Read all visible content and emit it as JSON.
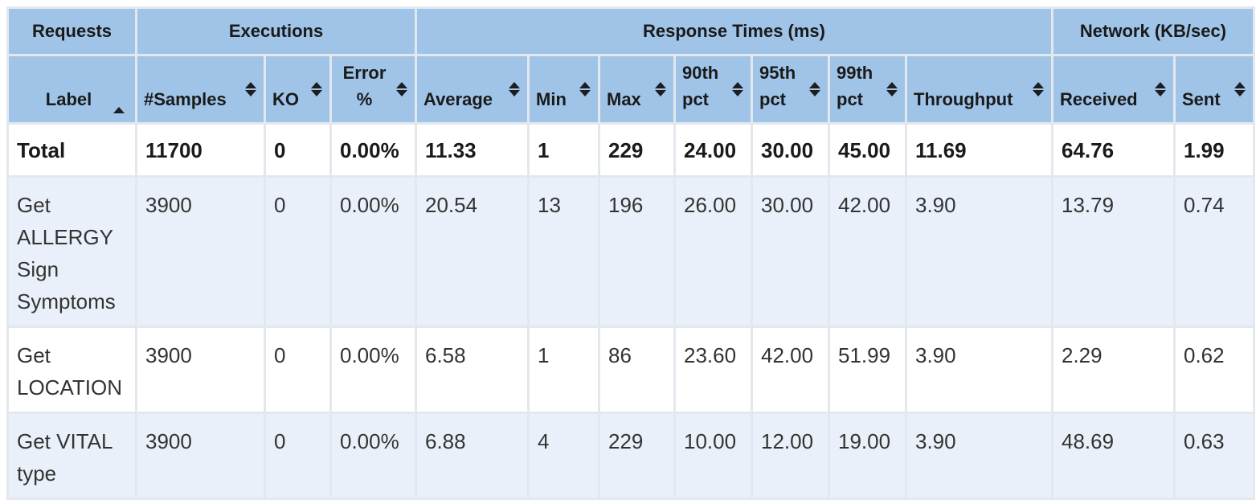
{
  "table": {
    "group_headers": [
      "Requests",
      "Executions",
      "Response Times (ms)",
      "Network (KB/sec)"
    ],
    "columns": [
      {
        "label": "Label",
        "sort": "asc"
      },
      {
        "label": "#Samples",
        "sort": "both"
      },
      {
        "label": "KO",
        "sort": "both"
      },
      {
        "label": "Error %",
        "sort": "both"
      },
      {
        "label": "Average",
        "sort": "both"
      },
      {
        "label": "Min",
        "sort": "both"
      },
      {
        "label": "Max",
        "sort": "both"
      },
      {
        "label": "90th pct",
        "sort": "both"
      },
      {
        "label": "95th pct",
        "sort": "both"
      },
      {
        "label": "99th pct",
        "sort": "both"
      },
      {
        "label": "Throughput",
        "sort": "both"
      },
      {
        "label": "Received",
        "sort": "both"
      },
      {
        "label": "Sent",
        "sort": "both"
      }
    ],
    "total": [
      "Total",
      "11700",
      "0",
      "0.00%",
      "11.33",
      "1",
      "229",
      "24.00",
      "30.00",
      "45.00",
      "11.69",
      "64.76",
      "1.99"
    ],
    "rows": [
      [
        "Get ALLERGY Sign Symptoms",
        "3900",
        "0",
        "0.00%",
        "20.54",
        "13",
        "196",
        "26.00",
        "30.00",
        "42.00",
        "3.90",
        "13.79",
        "0.74"
      ],
      [
        "Get LOCATION",
        "3900",
        "0",
        "0.00%",
        "6.58",
        "1",
        "86",
        "23.60",
        "42.00",
        "51.99",
        "3.90",
        "2.29",
        "0.62"
      ],
      [
        "Get VITAL type",
        "3900",
        "0",
        "0.00%",
        "6.88",
        "4",
        "229",
        "10.00",
        "12.00",
        "19.00",
        "3.90",
        "48.69",
        "0.63"
      ]
    ]
  },
  "colors": {
    "header_bg": "#9fc4e8",
    "grid": "#e3e8ee",
    "row_alt": "#eaf0f9"
  }
}
